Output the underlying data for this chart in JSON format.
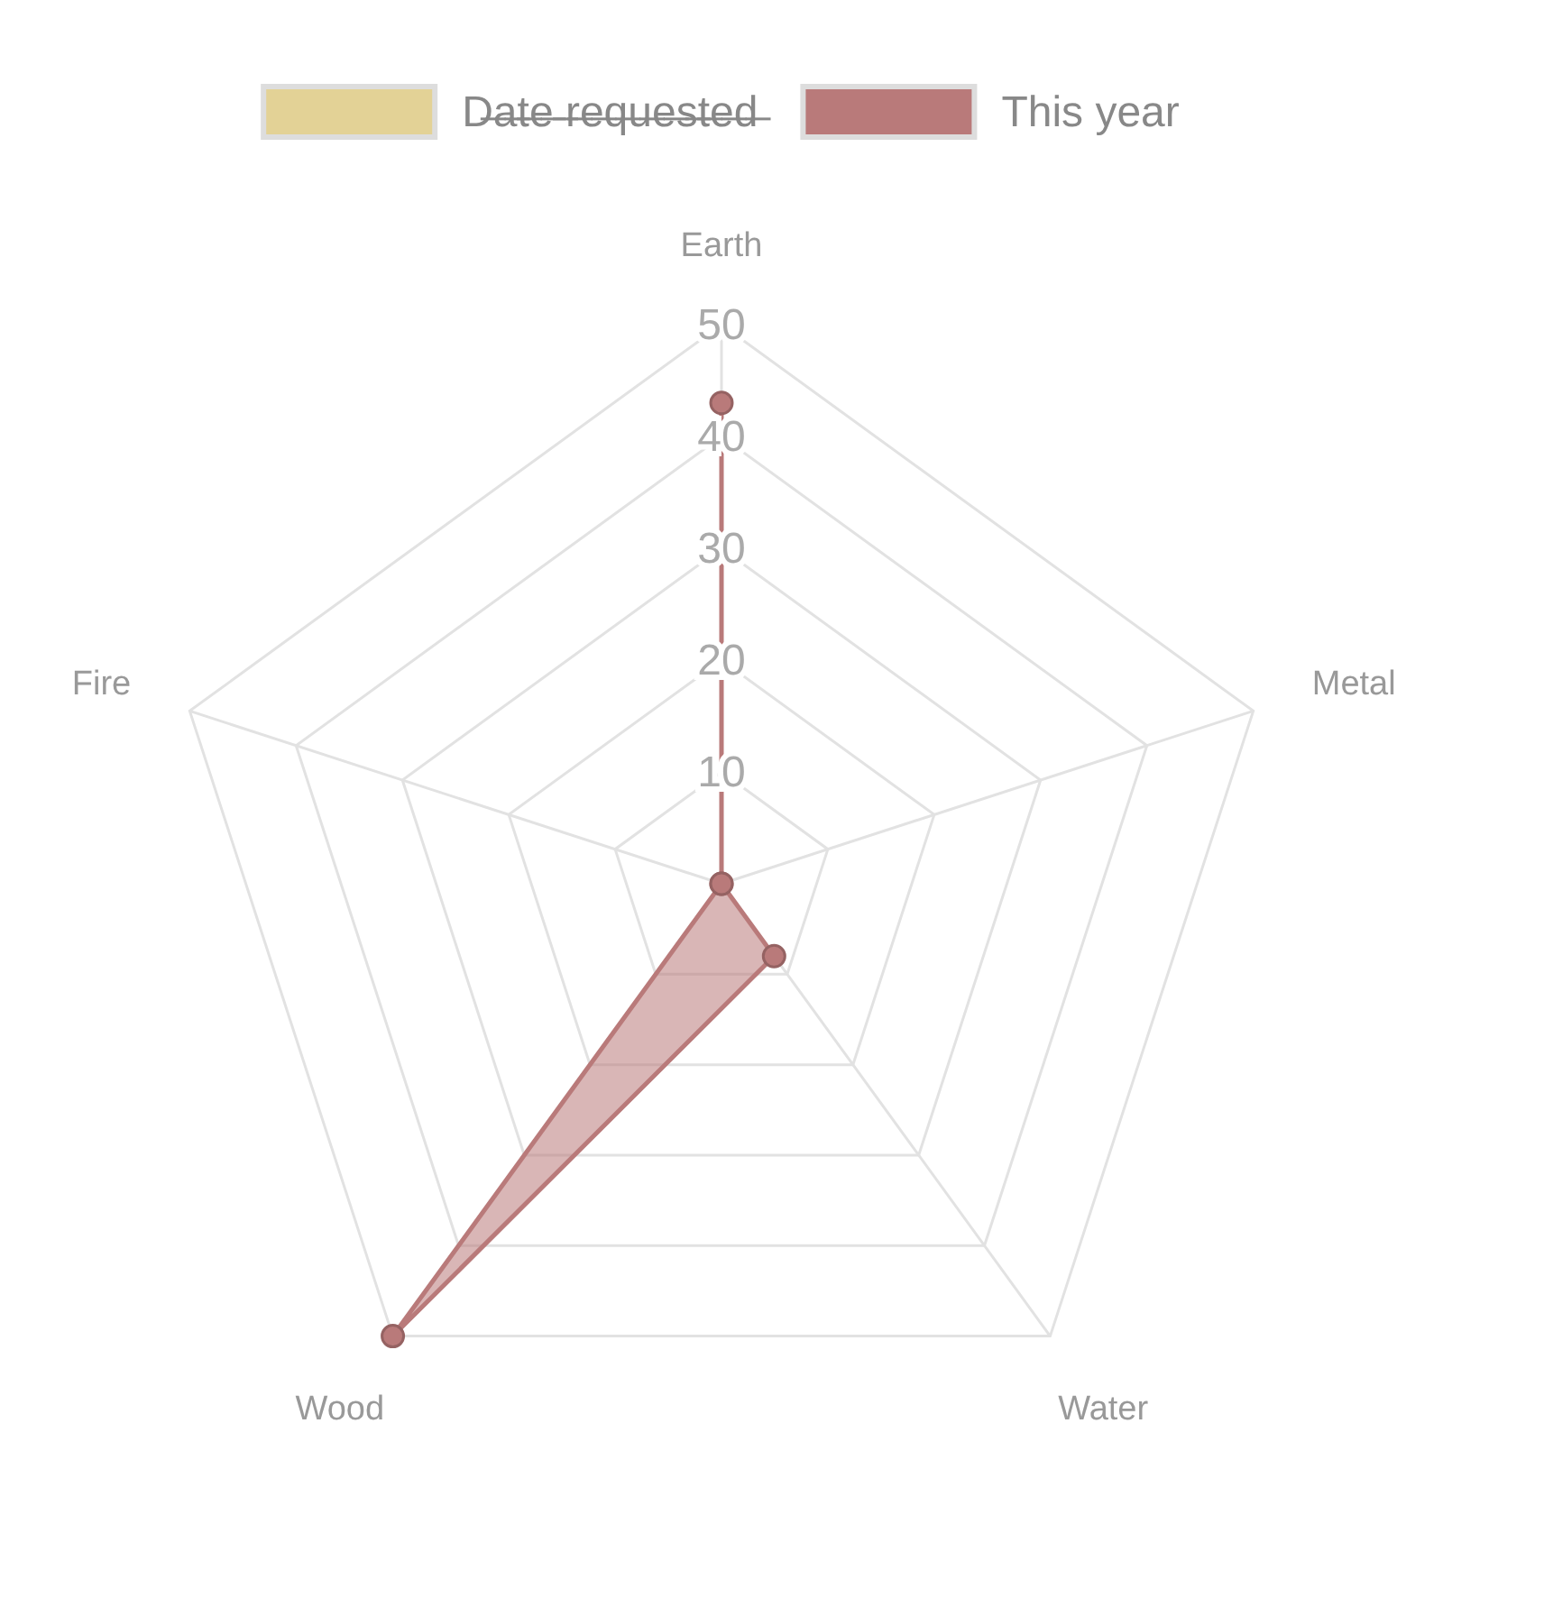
{
  "chart_data": {
    "type": "radar",
    "categories": [
      "Earth",
      "Metal",
      "Water",
      "Wood",
      "Fire"
    ],
    "series": [
      {
        "name": "This year",
        "color": "#b97a7a",
        "values": [
          43,
          0,
          8,
          50,
          0
        ]
      }
    ],
    "annotations": [
      "D̶a̶t̶e̶ ̶r̶e̶q̶u̶e̶s̶t̶e̶d̶"
    ],
    "ylim": [
      0,
      50
    ],
    "yticks": [
      10,
      20,
      30,
      40,
      50
    ],
    "grid": true,
    "legend": "top",
    "marker": "circle"
  }
}
